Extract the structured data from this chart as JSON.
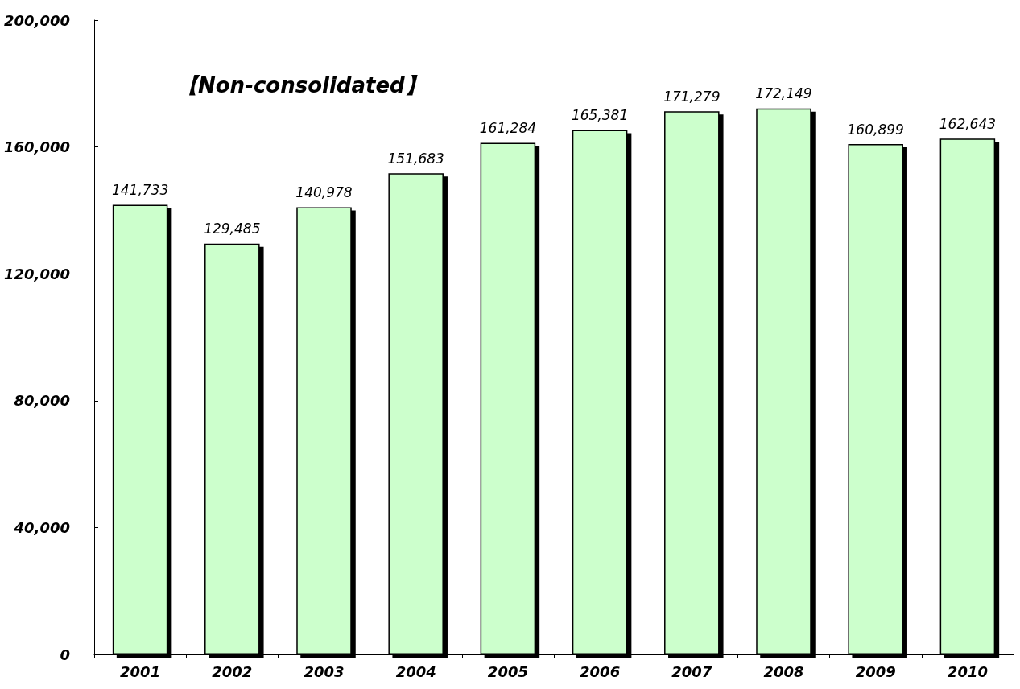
{
  "chart_data": {
    "type": "bar",
    "title": "【Non-consolidated】",
    "categories": [
      "2001",
      "2002",
      "2003",
      "2004",
      "2005",
      "2006",
      "2007",
      "2008",
      "2009",
      "2010"
    ],
    "values": [
      141733,
      129485,
      140978,
      151683,
      161284,
      165381,
      171279,
      172149,
      160899,
      162643
    ],
    "value_labels": [
      "141,733",
      "129,485",
      "140,978",
      "151,683",
      "161,284",
      "165,381",
      "171,279",
      "172,149",
      "160,899",
      "162,643"
    ],
    "color": "#ccffcc",
    "ylim": [
      0,
      200000
    ],
    "yticks": [
      0,
      {
        "value": 40000,
        "label": "40,000"
      },
      {
        "value": 80000,
        "label": "80,000"
      },
      {
        "value": 120000,
        "label": "120,000"
      },
      {
        "value": 160000,
        "label": "160,000"
      },
      {
        "value": 200000,
        "label": "200,000"
      }
    ],
    "grid": false
  }
}
